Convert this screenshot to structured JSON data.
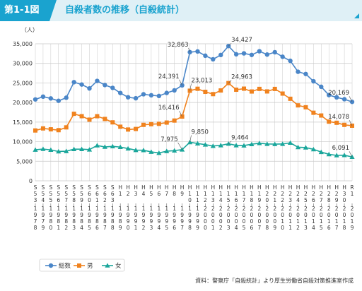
{
  "header": {
    "figure_label": "第1-1図",
    "title": "自殺者数の推移（自殺統計）"
  },
  "source": "資料：警察庁「自殺統計」より厚生労働省自殺対策推進室作成",
  "colors": {
    "total": "#4a86c8",
    "male": "#f0821e",
    "female": "#1aa69b",
    "grid": "#c8c8c8",
    "accent": "#1aa3cf"
  },
  "chart_data": {
    "type": "line",
    "ylabel": "（人）",
    "ylim": [
      0,
      35000
    ],
    "yticks": [
      0,
      5000,
      10000,
      15000,
      20000,
      25000,
      30000,
      35000
    ],
    "ytick_labels": [
      "0",
      "5,000",
      "10,000",
      "15,000",
      "20,000",
      "25,000",
      "30,000",
      "35,000"
    ],
    "grid": true,
    "legend": "bottom-left",
    "x": [
      1978,
      1979,
      1980,
      1981,
      1982,
      1983,
      1984,
      1985,
      1986,
      1987,
      1988,
      1989,
      1990,
      1991,
      1992,
      1993,
      1994,
      1995,
      1996,
      1997,
      1998,
      1999,
      2000,
      2001,
      2002,
      2003,
      2004,
      2005,
      2006,
      2007,
      2008,
      2009,
      2010,
      2011,
      2012,
      2013,
      2014,
      2015,
      2016,
      2017,
      2018,
      2019
    ],
    "era_labels": [
      "S53",
      "S54",
      "S55",
      "S56",
      "S57",
      "S58",
      "S59",
      "S60",
      "S61",
      "S62",
      "S63",
      "H1",
      "H2",
      "H3",
      "H4",
      "H5",
      "H6",
      "H7",
      "H8",
      "H9",
      "H10",
      "H11",
      "H12",
      "H13",
      "H14",
      "H15",
      "H16",
      "H17",
      "H18",
      "H19",
      "H20",
      "H21",
      "H22",
      "H23",
      "H24",
      "H25",
      "H26",
      "H27",
      "H28",
      "H29",
      "H30",
      "R1"
    ],
    "series": [
      {
        "name": "総数",
        "key": "total",
        "marker": "circle",
        "values": [
          20788,
          21503,
          21048,
          20434,
          21228,
          25202,
          24596,
          23599,
          25524,
          24460,
          23742,
          22436,
          21346,
          21084,
          22104,
          21851,
          21679,
          22445,
          23104,
          24391,
          32863,
          33048,
          31957,
          31042,
          32143,
          34427,
          32325,
          32552,
          32155,
          33093,
          32249,
          32845,
          31690,
          30651,
          27858,
          27283,
          25427,
          24025,
          21897,
          21321,
          20840,
          20169
        ]
      },
      {
        "name": "男",
        "key": "male",
        "marker": "square",
        "values": [
          12859,
          13386,
          13155,
          12942,
          13654,
          17116,
          16508,
          15624,
          16499,
          15802,
          14934,
          13818,
          13102,
          13242,
          14296,
          14468,
          14560,
          14874,
          15393,
          16416,
          23013,
          23512,
          22727,
          22144,
          23080,
          24963,
          23272,
          23540,
          22813,
          23478,
          22831,
          23472,
          22283,
          20955,
          19273,
          18787,
          17386,
          16681,
          15121,
          14826,
          14290,
          14078
        ]
      },
      {
        "name": "女",
        "key": "female",
        "marker": "triangle",
        "values": [
          7929,
          8117,
          7893,
          7492,
          7574,
          8086,
          8088,
          7975,
          9025,
          8658,
          8808,
          8618,
          8244,
          7842,
          7808,
          7383,
          7119,
          7571,
          7711,
          7975,
          9850,
          9536,
          9230,
          8898,
          9063,
          9464,
          9053,
          9012,
          9342,
          9615,
          9418,
          9373,
          9407,
          9696,
          8585,
          8496,
          8041,
          7344,
          6776,
          6495,
          6550,
          6091
        ]
      }
    ],
    "annotations": [
      {
        "series": "total",
        "x": 1997,
        "text": "24,391"
      },
      {
        "series": "total",
        "x": 1998,
        "text": "32,863"
      },
      {
        "series": "total",
        "x": 2003,
        "text": "34,427"
      },
      {
        "series": "total",
        "x": 2019,
        "text": "20,169"
      },
      {
        "series": "male",
        "x": 1997,
        "text": "16,416"
      },
      {
        "series": "male",
        "x": 1998,
        "text": "23,013"
      },
      {
        "series": "male",
        "x": 2003,
        "text": "24,963"
      },
      {
        "series": "male",
        "x": 2019,
        "text": "14,078"
      },
      {
        "series": "female",
        "x": 1997,
        "text": "7,975"
      },
      {
        "series": "female",
        "x": 1998,
        "text": "9,850"
      },
      {
        "series": "female",
        "x": 2003,
        "text": "9,464"
      },
      {
        "series": "female",
        "x": 2019,
        "text": "6,091"
      }
    ]
  }
}
